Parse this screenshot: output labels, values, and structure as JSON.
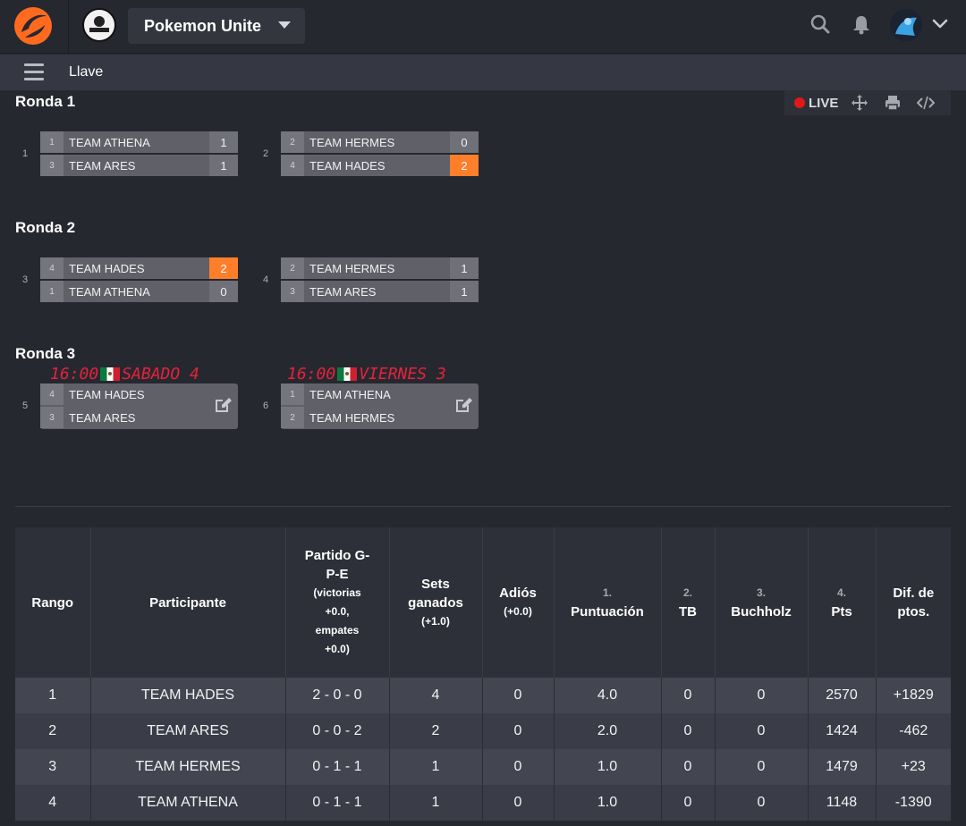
{
  "header": {
    "game": "Pokemon Unite"
  },
  "subbar": {
    "title": "Llave"
  },
  "live": {
    "label": "LIVE"
  },
  "rounds": [
    {
      "title": "Ronda 1",
      "matches": [
        {
          "num": "1",
          "a": {
            "seed": "1",
            "name": "TEAM ATHENA",
            "score": "1"
          },
          "b": {
            "seed": "3",
            "name": "TEAM ARES",
            "score": "1"
          }
        },
        {
          "num": "2",
          "a": {
            "seed": "2",
            "name": "TEAM HERMES",
            "score": "0"
          },
          "b": {
            "seed": "4",
            "name": "TEAM HADES",
            "score": "2"
          }
        }
      ]
    },
    {
      "title": "Ronda 2",
      "matches": [
        {
          "num": "3",
          "a": {
            "seed": "4",
            "name": "TEAM HADES",
            "score": "2"
          },
          "b": {
            "seed": "1",
            "name": "TEAM ATHENA",
            "score": "0"
          }
        },
        {
          "num": "4",
          "a": {
            "seed": "2",
            "name": "TEAM HERMES",
            "score": "1"
          },
          "b": {
            "seed": "3",
            "name": "TEAM ARES",
            "score": "1"
          }
        }
      ]
    },
    {
      "title": "Ronda 3",
      "matches": [
        {
          "num": "5",
          "schedule_time": "16:00",
          "schedule_day": "SABADO 4",
          "a": {
            "seed": "4",
            "name": "TEAM HADES"
          },
          "b": {
            "seed": "3",
            "name": "TEAM ARES"
          }
        },
        {
          "num": "6",
          "schedule_time": "16:00",
          "schedule_day": "VIERNES 3",
          "a": {
            "seed": "1",
            "name": "TEAM ATHENA"
          },
          "b": {
            "seed": "2",
            "name": "TEAM HERMES"
          }
        }
      ]
    }
  ],
  "standings": {
    "headers": {
      "rank": "Rango",
      "participant": "Participante",
      "match_line1": "Partido G-",
      "match_line2": "P-E",
      "match_note1": "(victorias",
      "match_note2": "+0.0,",
      "match_note3": "empates",
      "match_note4": "+0.0)",
      "sets_line1": "Sets",
      "sets_line2": "ganados",
      "sets_note": "(+1.0)",
      "bye": "Adiós",
      "bye_note": "(+0.0)",
      "score_num": "1.",
      "score": "Puntuación",
      "tb_num": "2.",
      "tb": "TB",
      "buchholz_num": "3.",
      "buchholz": "Buchholz",
      "pts_num": "4.",
      "pts": "Pts",
      "diff_line1": "Dif. de",
      "diff_line2": "ptos."
    },
    "rows": [
      {
        "rank": "1",
        "participant": "TEAM HADES",
        "match": "2 - 0 - 0",
        "sets": "4",
        "bye": "0",
        "score": "4.0",
        "tb": "0",
        "buchholz": "0",
        "pts": "2570",
        "diff": "+1829"
      },
      {
        "rank": "2",
        "participant": "TEAM ARES",
        "match": "0 - 0 - 2",
        "sets": "2",
        "bye": "0",
        "score": "2.0",
        "tb": "0",
        "buchholz": "0",
        "pts": "1424",
        "diff": "-462"
      },
      {
        "rank": "3",
        "participant": "TEAM HERMES",
        "match": "0 - 1 - 1",
        "sets": "1",
        "bye": "0",
        "score": "1.0",
        "tb": "0",
        "buchholz": "0",
        "pts": "1479",
        "diff": "+23"
      },
      {
        "rank": "4",
        "participant": "TEAM ATHENA",
        "match": "0 - 1 - 1",
        "sets": "1",
        "bye": "0",
        "score": "1.0",
        "tb": "0",
        "buchholz": "0",
        "pts": "1148",
        "diff": "-1390"
      }
    ]
  },
  "colors": {
    "accent": "#ff7e2a",
    "live": "#e01818",
    "schedule": "#e8213a"
  },
  "icons": [
    "logo-icon",
    "org-logo",
    "search-icon",
    "bell-icon",
    "avatar",
    "chevron-down-icon",
    "menu-icon",
    "live-dot-icon",
    "move-icon",
    "print-icon",
    "code-icon",
    "edit-icon",
    "mexico-flag-icon"
  ]
}
